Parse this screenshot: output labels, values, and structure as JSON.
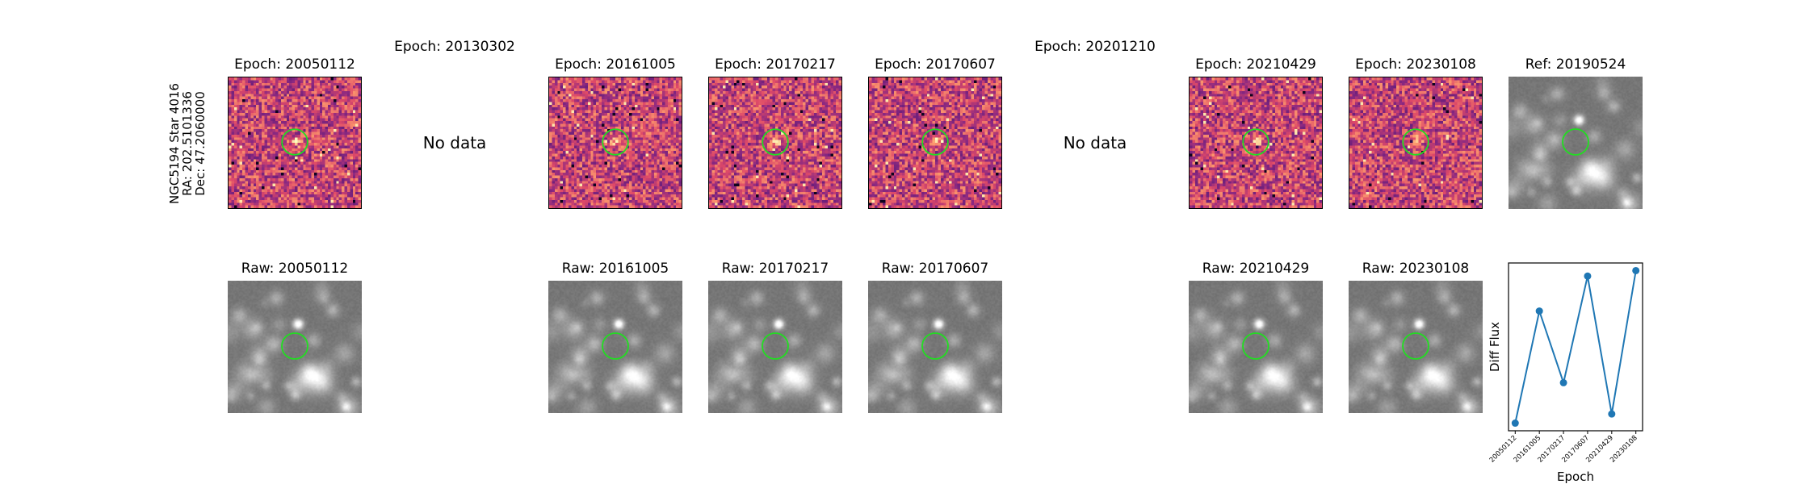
{
  "star_label": {
    "name": "NGC5194 Star 4016",
    "ra": "RA: 202.5101336",
    "dec": "Dec: 47.2060000"
  },
  "top_row": [
    {
      "title": "Epoch: 20050112",
      "has_data": true,
      "kind": "diff"
    },
    {
      "title": "Epoch: 20130302",
      "has_data": false,
      "kind": "diff",
      "message": "No data"
    },
    {
      "title": "Epoch: 20161005",
      "has_data": true,
      "kind": "diff"
    },
    {
      "title": "Epoch: 20170217",
      "has_data": true,
      "kind": "diff"
    },
    {
      "title": "Epoch: 20170607",
      "has_data": true,
      "kind": "diff"
    },
    {
      "title": "Epoch: 20201210",
      "has_data": false,
      "kind": "diff",
      "message": "No data"
    },
    {
      "title": "Epoch: 20210429",
      "has_data": true,
      "kind": "diff"
    },
    {
      "title": "Epoch: 20230108",
      "has_data": true,
      "kind": "diff"
    },
    {
      "title": "Ref: 20190524",
      "has_data": true,
      "kind": "raw"
    }
  ],
  "bottom_row": [
    {
      "title": "Raw: 20050112",
      "has_data": true
    },
    {
      "title": "",
      "has_data": false
    },
    {
      "title": "Raw: 20161005",
      "has_data": true
    },
    {
      "title": "Raw: 20170217",
      "has_data": true
    },
    {
      "title": "Raw: 20170607",
      "has_data": true
    },
    {
      "title": "",
      "has_data": false
    },
    {
      "title": "Raw: 20210429",
      "has_data": true
    },
    {
      "title": "Raw: 20230108",
      "has_data": true
    }
  ],
  "colors": {
    "circle": "#22dd22",
    "line": "#1f77b4"
  },
  "chart_data": {
    "type": "line",
    "title": "",
    "xlabel": "Epoch",
    "ylabel": "Diff Flux",
    "categories": [
      "20050112",
      "20161005",
      "20170217",
      "20170607",
      "20210429",
      "20230108"
    ],
    "series": [
      {
        "values": [
          0.0,
          0.61,
          0.22,
          0.8,
          0.05,
          0.83
        ]
      }
    ],
    "y_ticks_shown": false
  }
}
